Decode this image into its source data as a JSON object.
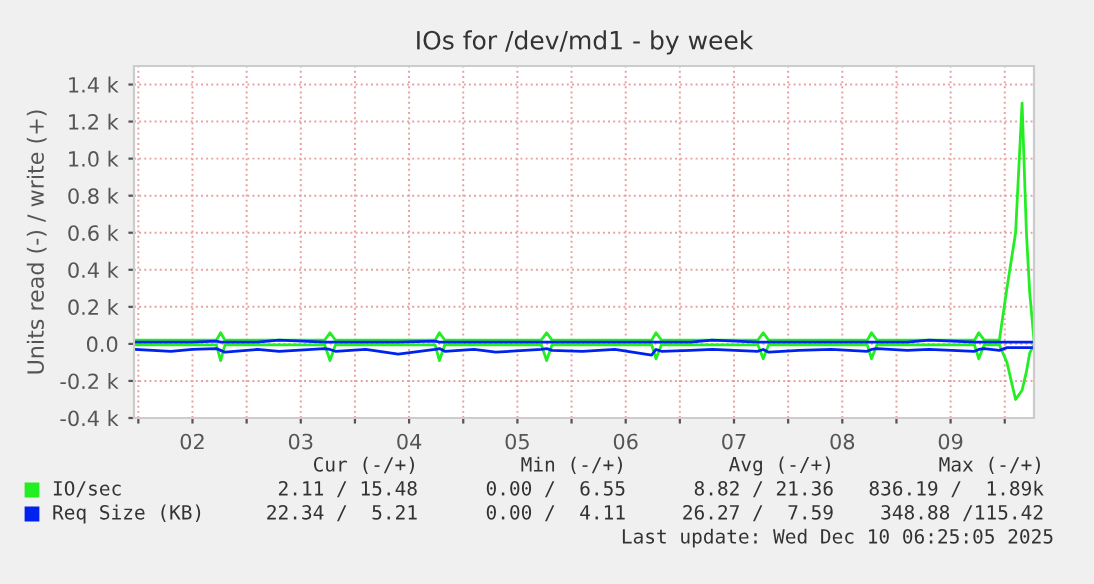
{
  "chart_data": {
    "type": "line",
    "title": "IOs for /dev/md1 - by week",
    "ylabel": "Units read (-) / write (+)",
    "x": [
      1.97,
      2.3,
      2.5,
      2.72,
      2.76,
      2.8,
      3.1,
      3.3,
      3.72,
      3.77,
      3.82,
      4.1,
      4.4,
      4.74,
      4.78,
      4.83,
      5.1,
      5.3,
      5.72,
      5.77,
      5.82,
      6.1,
      6.4,
      6.74,
      6.78,
      6.83,
      7.1,
      7.3,
      7.72,
      7.77,
      7.82,
      8.1,
      8.4,
      8.73,
      8.77,
      8.82,
      9.1,
      9.3,
      9.72,
      9.76,
      9.81,
      9.95,
      10.02,
      10.1,
      10.16,
      10.2,
      10.23,
      10.27
    ],
    "series": [
      {
        "name": "IO/sec",
        "color": "#22ee22",
        "values": [
          20,
          20,
          20,
          20,
          60,
          20,
          20,
          20,
          20,
          60,
          20,
          20,
          20,
          20,
          60,
          20,
          20,
          20,
          20,
          60,
          20,
          20,
          20,
          20,
          60,
          20,
          20,
          20,
          20,
          60,
          20,
          20,
          20,
          20,
          60,
          20,
          20,
          20,
          20,
          60,
          20,
          20,
          300,
          600,
          1300,
          600,
          280,
          20
        ]
      },
      {
        "color": "#22ee22",
        "values": [
          -5,
          -5,
          -5,
          -5,
          -90,
          -5,
          -5,
          -5,
          -5,
          -90,
          -5,
          -5,
          -5,
          -5,
          -90,
          -5,
          -5,
          -5,
          -5,
          -90,
          -5,
          -5,
          -5,
          -5,
          -80,
          -5,
          -5,
          -5,
          -5,
          -80,
          -5,
          -5,
          -5,
          -5,
          -80,
          -5,
          -5,
          -5,
          -5,
          -80,
          -5,
          -5,
          -100,
          -300,
          -250,
          -150,
          -50,
          -5
        ]
      },
      {
        "name": "Req Size (KB)",
        "color": "#0022ee",
        "values": [
          10,
          10,
          10,
          15,
          10,
          10,
          10,
          20,
          10,
          10,
          10,
          10,
          10,
          15,
          10,
          10,
          10,
          10,
          10,
          10,
          10,
          10,
          10,
          10,
          10,
          10,
          10,
          20,
          10,
          10,
          10,
          10,
          10,
          10,
          10,
          10,
          10,
          20,
          10,
          10,
          10,
          10,
          10,
          10,
          10,
          10,
          10,
          10
        ]
      },
      {
        "color": "#0022ee",
        "values": [
          -30,
          -40,
          -30,
          -25,
          -35,
          -45,
          -30,
          -40,
          -25,
          -30,
          -40,
          -30,
          -55,
          -30,
          -25,
          -40,
          -30,
          -45,
          -30,
          -25,
          -35,
          -40,
          -30,
          -60,
          -30,
          -40,
          -35,
          -30,
          -40,
          -30,
          -45,
          -35,
          -30,
          -40,
          -30,
          -25,
          -35,
          -30,
          -40,
          -30,
          -25,
          -35,
          -20,
          -20,
          -20,
          -20,
          -20,
          -20
        ]
      }
    ],
    "xlim": [
      1.96,
      10.27
    ],
    "xticks": [
      {
        "value": 2.0,
        "label": null
      },
      {
        "value": 2.5,
        "label": "02"
      },
      {
        "value": 3.0,
        "label": null
      },
      {
        "value": 3.5,
        "label": "03"
      },
      {
        "value": 4.0,
        "label": null
      },
      {
        "value": 4.5,
        "label": "04"
      },
      {
        "value": 5.0,
        "label": null
      },
      {
        "value": 5.5,
        "label": "05"
      },
      {
        "value": 6.0,
        "label": null
      },
      {
        "value": 6.5,
        "label": "06"
      },
      {
        "value": 7.0,
        "label": null
      },
      {
        "value": 7.5,
        "label": "07"
      },
      {
        "value": 8.0,
        "label": null
      },
      {
        "value": 8.5,
        "label": "08"
      },
      {
        "value": 9.0,
        "label": null
      },
      {
        "value": 9.5,
        "label": "09"
      },
      {
        "value": 10.0,
        "label": null
      }
    ],
    "ylim": [
      -400,
      1500
    ],
    "yticks": [
      {
        "value": -400,
        "label": "-0.4 k"
      },
      {
        "value": -200,
        "label": "-0.2 k"
      },
      {
        "value": 0,
        "label": "0.0"
      },
      {
        "value": 200,
        "label": "0.2 k"
      },
      {
        "value": 400,
        "label": "0.4 k"
      },
      {
        "value": 600,
        "label": "0.6 k"
      },
      {
        "value": 800,
        "label": "0.8 k"
      },
      {
        "value": 1000,
        "label": "1.0 k"
      },
      {
        "value": 1200,
        "label": "1.2 k"
      },
      {
        "value": 1400,
        "label": "1.4 k"
      }
    ],
    "grid": true,
    "legend": "bottom",
    "annotations": [
      "Cur (-/+)",
      "Min (-/+)",
      "Avg (-/+)",
      "Max (-/+)",
      "2.11 / 15.48",
      "0.00 /  6.55",
      "8.82 / 21.36",
      "836.19 /  1.89k",
      "22.34 /  5.21",
      "0.00 /  4.11",
      "26.27 /  7.59",
      "348.88 /115.42",
      "Last update: Wed Dec 10 06:25:05 2025"
    ]
  }
}
